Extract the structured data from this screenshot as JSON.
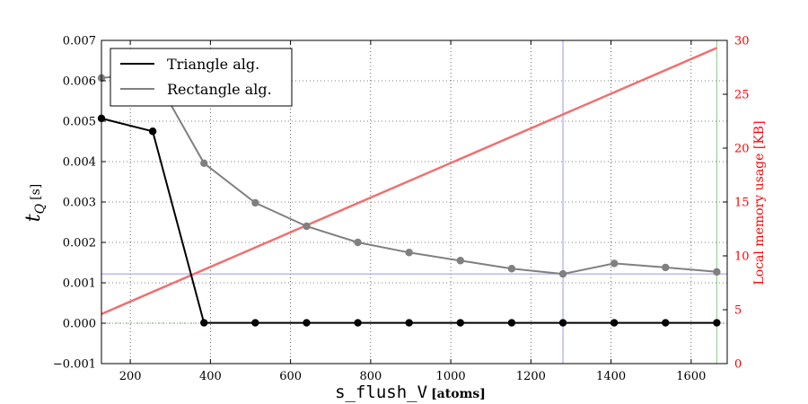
{
  "chart_data": {
    "type": "line",
    "x": [
      128,
      256,
      384,
      512,
      640,
      768,
      896,
      1024,
      1152,
      1280,
      1408,
      1536,
      1664
    ],
    "series": [
      {
        "name": "Triangle alg.",
        "axis": "left",
        "color": "#000000",
        "values": [
          0.00507,
          0.00475,
          1e-05,
          1e-05,
          1e-05,
          1e-05,
          1e-05,
          1e-05,
          1e-05,
          1e-05,
          1e-05,
          1e-05,
          1e-05
        ]
      },
      {
        "name": "Rectangle alg.",
        "axis": "left",
        "color": "#808080",
        "values": [
          0.00607,
          0.0062,
          0.00396,
          0.00298,
          0.0024,
          0.002,
          0.00175,
          0.00155,
          0.00135,
          0.00122,
          0.00148,
          0.00138,
          0.00127
        ]
      },
      {
        "axis": "right",
        "color": "#f07070",
        "x": [
          128,
          1664
        ],
        "values": [
          4.6,
          29.3
        ]
      }
    ],
    "left_axis": {
      "label_main": "t",
      "label_sub": "Q",
      "label_unit": "[s]",
      "ylim": [
        -0.001,
        0.007
      ],
      "ticks": [
        -0.001,
        0.0,
        0.001,
        0.002,
        0.003,
        0.004,
        0.005,
        0.006,
        0.007
      ],
      "tick_labels": [
        "−0.001",
        "0.000",
        "0.001",
        "0.002",
        "0.003",
        "0.004",
        "0.005",
        "0.006",
        "0.007"
      ]
    },
    "right_axis": {
      "label": "Local memory usage [KB]",
      "color": "#ff0000",
      "ylim": [
        0,
        30
      ],
      "ticks": [
        0,
        5,
        10,
        15,
        20,
        25,
        30
      ],
      "tick_labels": [
        "0",
        "5",
        "10",
        "15",
        "20",
        "25",
        "30"
      ]
    },
    "x_axis": {
      "label_main": "s_flush_V",
      "label_unit": "[atoms]",
      "xlim": [
        128,
        1690
      ],
      "ticks": [
        200,
        400,
        600,
        800,
        1000,
        1200,
        1400,
        1600
      ],
      "tick_labels": [
        "200",
        "400",
        "600",
        "800",
        "1000",
        "1200",
        "1400",
        "1600"
      ]
    },
    "reference_lines": [
      {
        "orientation": "vertical",
        "x": 1280,
        "color": "#9999ee"
      },
      {
        "orientation": "horizontal",
        "y": 0.00122,
        "color": "#9999ee"
      },
      {
        "orientation": "vertical",
        "x": 1664,
        "color": "#88cc88"
      },
      {
        "orientation": "horizontal",
        "y": 0.0,
        "color": "#66aa66",
        "style": "dotted"
      }
    ],
    "grid": true,
    "legend_position": "top-left"
  }
}
